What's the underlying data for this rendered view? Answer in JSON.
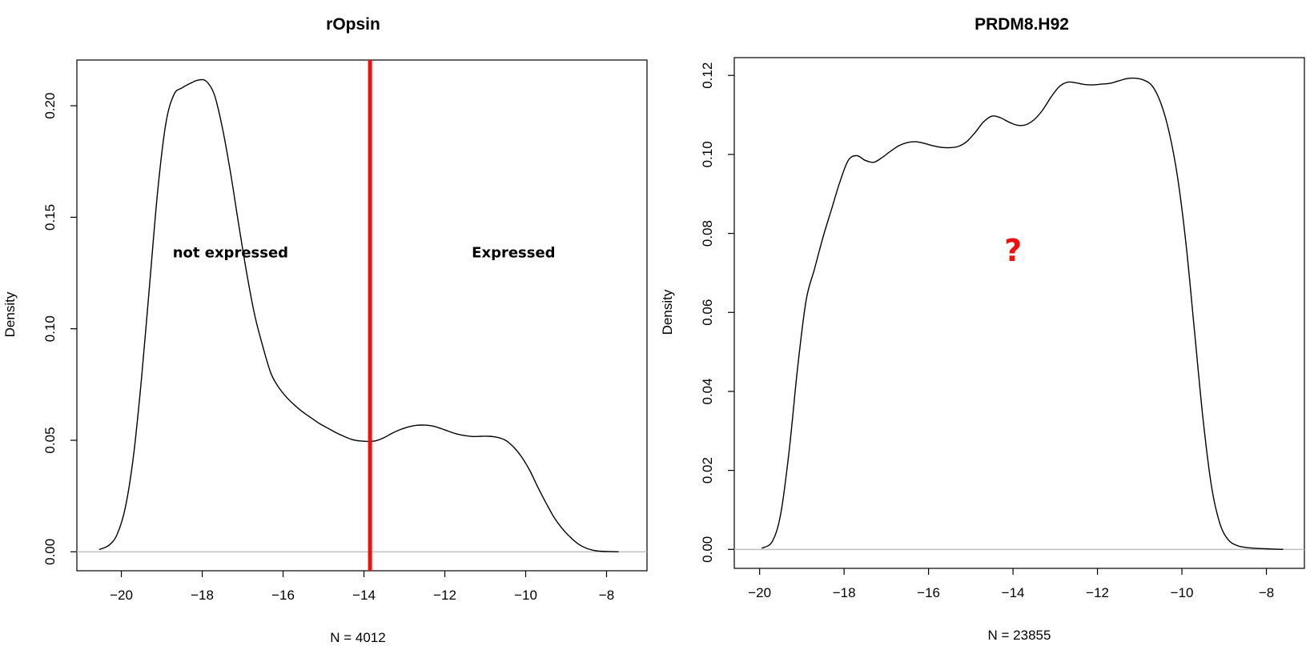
{
  "chart_data": [
    {
      "type": "line",
      "title": "rOpsin",
      "xlabel": "N = 4012",
      "ylabel": "Density",
      "xlim": [
        -21.1,
        -7.0
      ],
      "ylim": [
        -0.0085,
        0.2205
      ],
      "xticks": [
        -20,
        -18,
        -16,
        -14,
        -12,
        -10,
        -8
      ],
      "xtick_labels": [
        "−20",
        "−18",
        "−16",
        "−14",
        "−12",
        "−10",
        "−8"
      ],
      "yticks": [
        0.0,
        0.05,
        0.1,
        0.15,
        0.2
      ],
      "ytick_labels": [
        "0.00",
        "0.05",
        "0.10",
        "0.15",
        "0.20"
      ],
      "grid": false,
      "baseline": 0,
      "threshold": {
        "x": -13.85,
        "color": "#ee1111"
      },
      "annotations": [
        {
          "text": "not expressed",
          "x": -17.3,
          "y": 0.132,
          "color": "#000000"
        },
        {
          "text": "Expressed",
          "x": -10.3,
          "y": 0.132,
          "color": "#000000"
        }
      ],
      "series": [
        {
          "color": "#000000",
          "x": [
            -20.55,
            -20.3,
            -20.1,
            -19.9,
            -19.7,
            -19.5,
            -19.3,
            -19.1,
            -18.9,
            -18.7,
            -18.5,
            -18.3,
            -18.1,
            -17.9,
            -17.7,
            -17.5,
            -17.3,
            -17.1,
            -16.9,
            -16.7,
            -16.5,
            -16.3,
            -16.1,
            -15.9,
            -15.7,
            -15.5,
            -15.3,
            -15.1,
            -14.9,
            -14.7,
            -14.5,
            -14.3,
            -14.1,
            -13.9,
            -13.7,
            -13.5,
            -13.3,
            -13.1,
            -12.9,
            -12.7,
            -12.5,
            -12.3,
            -12.1,
            -11.9,
            -11.7,
            -11.5,
            -11.3,
            -11.1,
            -10.9,
            -10.7,
            -10.5,
            -10.3,
            -10.1,
            -9.9,
            -9.7,
            -9.5,
            -9.3,
            -9.1,
            -8.9,
            -8.7,
            -8.5,
            -8.3,
            -8.1,
            -7.9,
            -7.7
          ],
          "y": [
            0.001,
            0.003,
            0.008,
            0.02,
            0.043,
            0.078,
            0.12,
            0.162,
            0.192,
            0.205,
            0.208,
            0.21,
            0.2115,
            0.211,
            0.205,
            0.19,
            0.17,
            0.147,
            0.125,
            0.106,
            0.092,
            0.08,
            0.0735,
            0.069,
            0.0655,
            0.0625,
            0.06,
            0.0575,
            0.0555,
            0.0535,
            0.0518,
            0.0504,
            0.0497,
            0.0495,
            0.0498,
            0.0512,
            0.0532,
            0.0548,
            0.056,
            0.0567,
            0.0568,
            0.0564,
            0.0553,
            0.054,
            0.0528,
            0.0521,
            0.0517,
            0.0518,
            0.0518,
            0.0513,
            0.05,
            0.047,
            0.0425,
            0.0365,
            0.029,
            0.022,
            0.0155,
            0.0105,
            0.0066,
            0.0035,
            0.0016,
            0.0006,
            0.0002,
            0.0001,
            0.0
          ]
        }
      ]
    },
    {
      "type": "line",
      "title": "PRDM8.H92",
      "xlabel": "N = 23855",
      "ylabel": "Density",
      "xlim": [
        -20.6,
        -7.1
      ],
      "ylim": [
        -0.0048,
        0.1245
      ],
      "xticks": [
        -20,
        -18,
        -16,
        -14,
        -12,
        -10,
        -8
      ],
      "xtick_labels": [
        "−20",
        "−18",
        "−16",
        "−14",
        "−12",
        "−10",
        "−8"
      ],
      "yticks": [
        0.0,
        0.02,
        0.04,
        0.06,
        0.08,
        0.1,
        0.12
      ],
      "ytick_labels": [
        "0.00",
        "0.02",
        "0.04",
        "0.06",
        "0.08",
        "0.10",
        "0.12"
      ],
      "grid": false,
      "baseline": 0,
      "annotations": [
        {
          "text": "?",
          "x": -14.0,
          "y": 0.073,
          "color": "#ee1111"
        }
      ],
      "series": [
        {
          "color": "#000000",
          "x": [
            -19.95,
            -19.7,
            -19.5,
            -19.3,
            -19.1,
            -18.9,
            -18.7,
            -18.5,
            -18.3,
            -18.1,
            -17.9,
            -17.7,
            -17.5,
            -17.3,
            -17.1,
            -16.9,
            -16.7,
            -16.5,
            -16.3,
            -16.1,
            -15.9,
            -15.7,
            -15.5,
            -15.3,
            -15.1,
            -14.9,
            -14.7,
            -14.5,
            -14.3,
            -14.1,
            -13.9,
            -13.7,
            -13.5,
            -13.3,
            -13.1,
            -12.9,
            -12.7,
            -12.5,
            -12.3,
            -12.1,
            -11.9,
            -11.7,
            -11.5,
            -11.3,
            -11.1,
            -10.9,
            -10.7,
            -10.5,
            -10.3,
            -10.1,
            -9.9,
            -9.7,
            -9.5,
            -9.3,
            -9.1,
            -8.9,
            -8.7,
            -8.5,
            -8.3,
            -8.1,
            -7.9,
            -7.6
          ],
          "y": [
            0.0003,
            0.002,
            0.009,
            0.025,
            0.046,
            0.063,
            0.071,
            0.079,
            0.086,
            0.093,
            0.0985,
            0.0997,
            0.0985,
            0.098,
            0.0992,
            0.1008,
            0.1022,
            0.103,
            0.1032,
            0.1028,
            0.1022,
            0.1018,
            0.1017,
            0.102,
            0.1032,
            0.1055,
            0.1082,
            0.1097,
            0.1093,
            0.1082,
            0.1074,
            0.1075,
            0.1088,
            0.1112,
            0.1145,
            0.1172,
            0.1183,
            0.1181,
            0.1177,
            0.1176,
            0.1178,
            0.118,
            0.1186,
            0.1192,
            0.1193,
            0.1188,
            0.1173,
            0.113,
            0.1055,
            0.094,
            0.077,
            0.055,
            0.033,
            0.016,
            0.0065,
            0.0024,
            0.001,
            0.0005,
            0.0003,
            0.0002,
            0.0001,
            0.0
          ]
        }
      ]
    }
  ]
}
